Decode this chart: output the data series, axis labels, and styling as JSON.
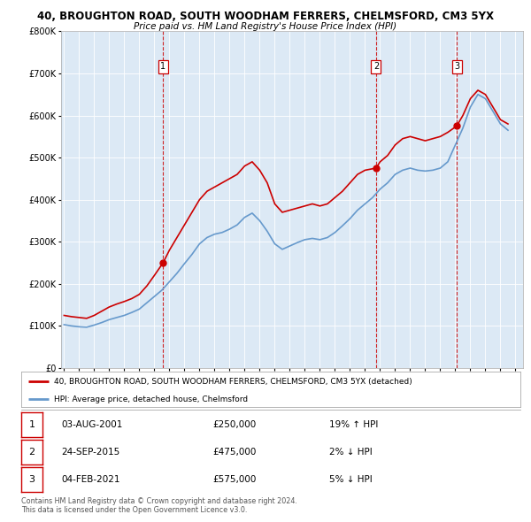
{
  "title1": "40, BROUGHTON ROAD, SOUTH WOODHAM FERRERS, CHELMSFORD, CM3 5YX",
  "title2": "Price paid vs. HM Land Registry's House Price Index (HPI)",
  "legend_red": "40, BROUGHTON ROAD, SOUTH WOODHAM FERRERS, CHELMSFORD, CM3 5YX (detached)",
  "legend_blue": "HPI: Average price, detached house, Chelmsford",
  "footer1": "Contains HM Land Registry data © Crown copyright and database right 2024.",
  "footer2": "This data is licensed under the Open Government Licence v3.0.",
  "sales": [
    {
      "num": 1,
      "date": "03-AUG-2001",
      "price": "£250,000",
      "pct": "19% ↑ HPI",
      "year": 2001.58
    },
    {
      "num": 2,
      "date": "24-SEP-2015",
      "price": "£475,000",
      "pct": "2% ↓ HPI",
      "year": 2015.73
    },
    {
      "num": 3,
      "date": "04-FEB-2021",
      "price": "£575,000",
      "pct": "5% ↓ HPI",
      "year": 2021.09
    }
  ],
  "red_line": {
    "x": [
      1995.0,
      1995.5,
      1996.0,
      1996.5,
      1997.0,
      1997.5,
      1998.0,
      1998.5,
      1999.0,
      1999.5,
      2000.0,
      2000.5,
      2001.0,
      2001.58,
      2002.0,
      2002.5,
      2003.0,
      2003.5,
      2004.0,
      2004.5,
      2005.0,
      2005.5,
      2006.0,
      2006.5,
      2007.0,
      2007.5,
      2008.0,
      2008.5,
      2009.0,
      2009.5,
      2010.0,
      2010.5,
      2011.0,
      2011.5,
      2012.0,
      2012.5,
      2013.0,
      2013.5,
      2014.0,
      2014.5,
      2015.0,
      2015.73,
      2016.0,
      2016.5,
      2017.0,
      2017.5,
      2018.0,
      2018.5,
      2019.0,
      2019.5,
      2020.0,
      2020.5,
      2021.09,
      2021.5,
      2022.0,
      2022.5,
      2023.0,
      2023.5,
      2024.0,
      2024.5
    ],
    "y": [
      125000,
      122000,
      120000,
      118000,
      125000,
      135000,
      145000,
      152000,
      158000,
      165000,
      175000,
      195000,
      220000,
      250000,
      280000,
      310000,
      340000,
      370000,
      400000,
      420000,
      430000,
      440000,
      450000,
      460000,
      480000,
      490000,
      470000,
      440000,
      390000,
      370000,
      375000,
      380000,
      385000,
      390000,
      385000,
      390000,
      405000,
      420000,
      440000,
      460000,
      470000,
      475000,
      490000,
      505000,
      530000,
      545000,
      550000,
      545000,
      540000,
      545000,
      550000,
      560000,
      575000,
      600000,
      640000,
      660000,
      650000,
      620000,
      590000,
      580000
    ]
  },
  "blue_line": {
    "x": [
      1995.0,
      1995.5,
      1996.0,
      1996.5,
      1997.0,
      1997.5,
      1998.0,
      1998.5,
      1999.0,
      1999.5,
      2000.0,
      2000.5,
      2001.0,
      2001.5,
      2002.0,
      2002.5,
      2003.0,
      2003.5,
      2004.0,
      2004.5,
      2005.0,
      2005.5,
      2006.0,
      2006.5,
      2007.0,
      2007.5,
      2008.0,
      2008.5,
      2009.0,
      2009.5,
      2010.0,
      2010.5,
      2011.0,
      2011.5,
      2012.0,
      2012.5,
      2013.0,
      2013.5,
      2014.0,
      2014.5,
      2015.0,
      2015.5,
      2016.0,
      2016.5,
      2017.0,
      2017.5,
      2018.0,
      2018.5,
      2019.0,
      2019.5,
      2020.0,
      2020.5,
      2021.0,
      2021.5,
      2022.0,
      2022.5,
      2023.0,
      2023.5,
      2024.0,
      2024.5
    ],
    "y": [
      103000,
      100000,
      98000,
      97000,
      102000,
      108000,
      115000,
      120000,
      125000,
      132000,
      140000,
      155000,
      170000,
      185000,
      205000,
      225000,
      248000,
      270000,
      295000,
      310000,
      318000,
      322000,
      330000,
      340000,
      358000,
      368000,
      350000,
      325000,
      295000,
      282000,
      290000,
      298000,
      305000,
      308000,
      305000,
      310000,
      322000,
      338000,
      355000,
      375000,
      390000,
      405000,
      425000,
      440000,
      460000,
      470000,
      475000,
      470000,
      468000,
      470000,
      475000,
      490000,
      530000,
      570000,
      620000,
      650000,
      640000,
      610000,
      580000,
      565000
    ]
  },
  "ylim": [
    0,
    800000
  ],
  "xlim": [
    1994.8,
    2025.5
  ],
  "yticks": [
    0,
    100000,
    200000,
    300000,
    400000,
    500000,
    600000,
    700000,
    800000
  ],
  "ytick_labels": [
    "£0",
    "£100K",
    "£200K",
    "£300K",
    "£400K",
    "£500K",
    "£600K",
    "£700K",
    "£800K"
  ],
  "xticks": [
    1995,
    1996,
    1997,
    1998,
    1999,
    2000,
    2001,
    2002,
    2003,
    2004,
    2005,
    2006,
    2007,
    2008,
    2009,
    2010,
    2011,
    2012,
    2013,
    2014,
    2015,
    2016,
    2017,
    2018,
    2019,
    2020,
    2021,
    2022,
    2023,
    2024,
    2025
  ],
  "bg_color": "#dce9f5",
  "red_color": "#cc0000",
  "blue_color": "#6699cc",
  "vline_color": "#cc0000"
}
